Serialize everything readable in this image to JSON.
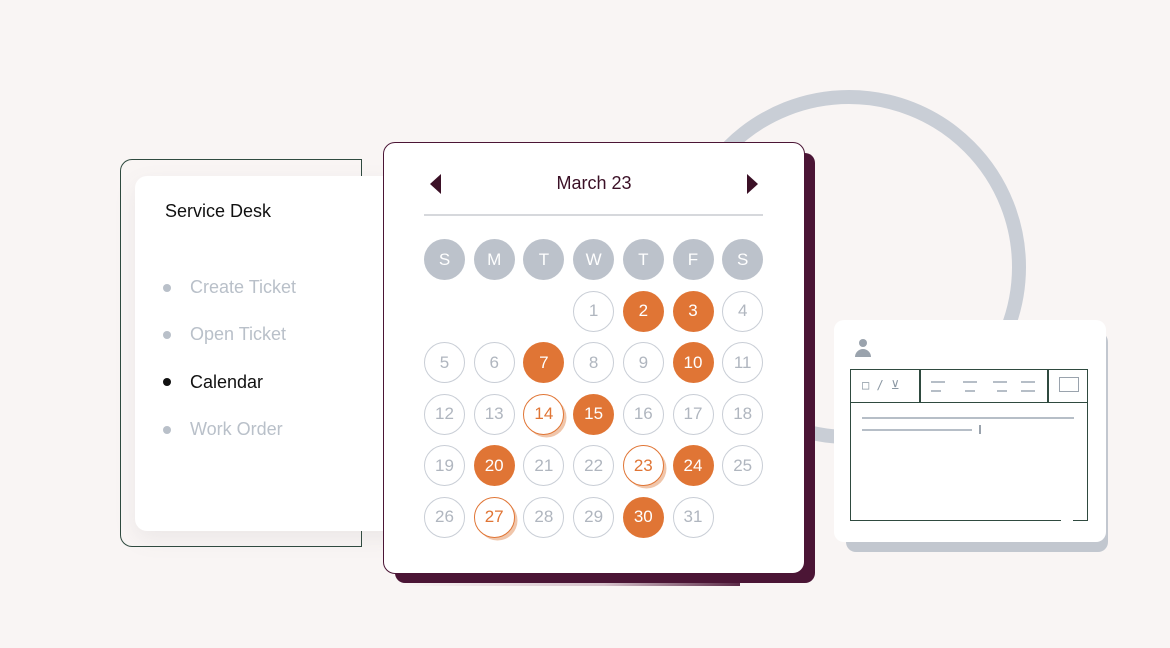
{
  "nav": {
    "title": "Service Desk",
    "items": [
      {
        "label": "Create Ticket",
        "active": false
      },
      {
        "label": "Open Ticket",
        "active": false
      },
      {
        "label": "Calendar",
        "active": true
      },
      {
        "label": "Work Order",
        "active": false
      }
    ]
  },
  "calendar": {
    "title": "March 23",
    "weekdays": [
      "S",
      "M",
      "T",
      "W",
      "T",
      "F",
      "S"
    ],
    "first_weekday_index": 3,
    "days_in_month": 31,
    "filled_days": [
      2,
      3,
      7,
      10,
      15,
      20,
      24,
      30
    ],
    "outlined_days": [
      14,
      23,
      27
    ],
    "accent_color": "#e07535",
    "frame_color": "#4b1535"
  },
  "form": {
    "toolbar_glyphs": "□ / ⊻"
  }
}
